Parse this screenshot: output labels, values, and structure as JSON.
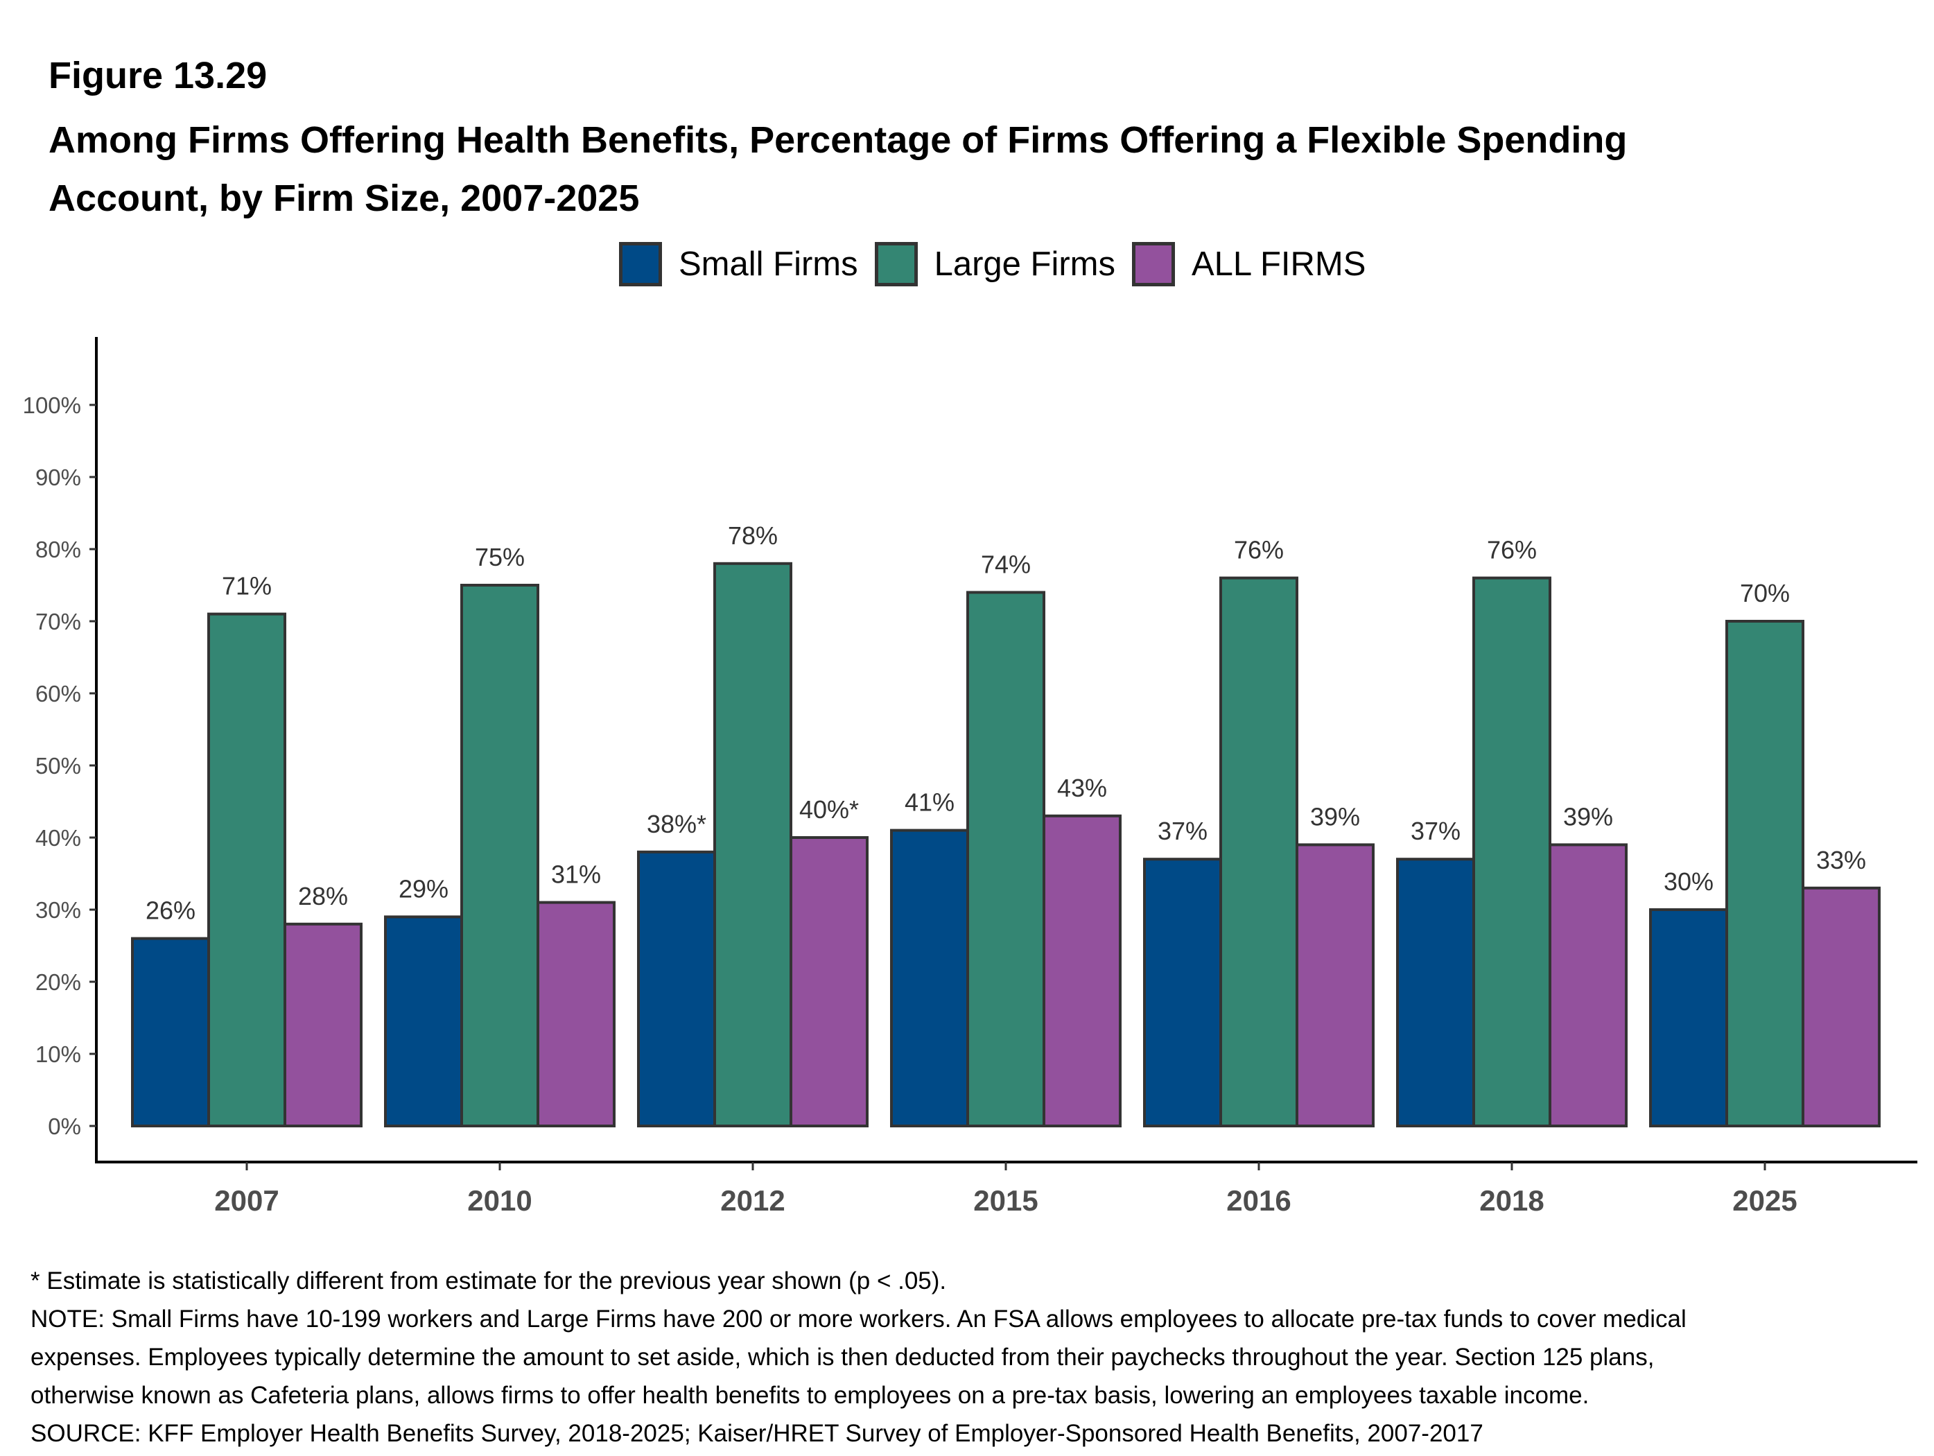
{
  "figure_label": "Figure 13.29",
  "title_line1": "Among Firms Offering Health Benefits, Percentage of Firms Offering a Flexible Spending",
  "title_line2": "Account, by Firm Size, 2007-2025",
  "chart_data": {
    "type": "bar",
    "title": "Among Firms Offering Health Benefits, Percentage of Firms Offering a Flexible Spending Account, by Firm Size, 2007-2025",
    "xlabel": "",
    "ylabel": "",
    "categories": [
      "2007",
      "2010",
      "2012",
      "2015",
      "2016",
      "2018",
      "2025"
    ],
    "series": [
      {
        "name": "Small Firms",
        "color": "#004a87",
        "values": [
          26,
          29,
          38,
          41,
          37,
          37,
          30
        ],
        "labels": [
          "26%",
          "29%",
          "38%*",
          "41%",
          "37%",
          "37%",
          "30%"
        ]
      },
      {
        "name": "Large Firms",
        "color": "#348673",
        "values": [
          71,
          75,
          78,
          74,
          76,
          76,
          70
        ],
        "labels": [
          "71%",
          "75%",
          "78%",
          "74%",
          "76%",
          "76%",
          "70%"
        ]
      },
      {
        "name": "ALL FIRMS",
        "color": "#93519d",
        "values": [
          28,
          31,
          40,
          43,
          39,
          39,
          33
        ],
        "labels": [
          "28%",
          "31%",
          "40%*",
          "43%",
          "39%",
          "39%",
          "33%"
        ]
      }
    ],
    "ylim": [
      0,
      100
    ],
    "yticks": [
      0,
      10,
      20,
      30,
      40,
      50,
      60,
      70,
      80,
      90,
      100
    ],
    "ytick_labels": [
      "0%",
      "10%",
      "20%",
      "30%",
      "40%",
      "50%",
      "60%",
      "70%",
      "80%",
      "90%",
      "100%"
    ],
    "grid": false,
    "legend_position": "top-center"
  },
  "footnotes": [
    "* Estimate is statistically different from estimate for the previous year shown (p < .05).",
    "NOTE: Small Firms have 10-199 workers and Large Firms have 200 or more workers.  An FSA allows employees to allocate pre-tax funds to cover medical",
    "expenses. Employees typically determine the amount to set aside, which is then deducted from their paychecks throughout the year. Section 125 plans,",
    "otherwise known as Cafeteria plans, allows firms to offer health benefits to employees on a pre-tax basis, lowering an employees taxable income.",
    "SOURCE: KFF Employer Health Benefits Survey, 2018-2025; Kaiser/HRET Survey of Employer-Sponsored Health Benefits, 2007-2017"
  ]
}
